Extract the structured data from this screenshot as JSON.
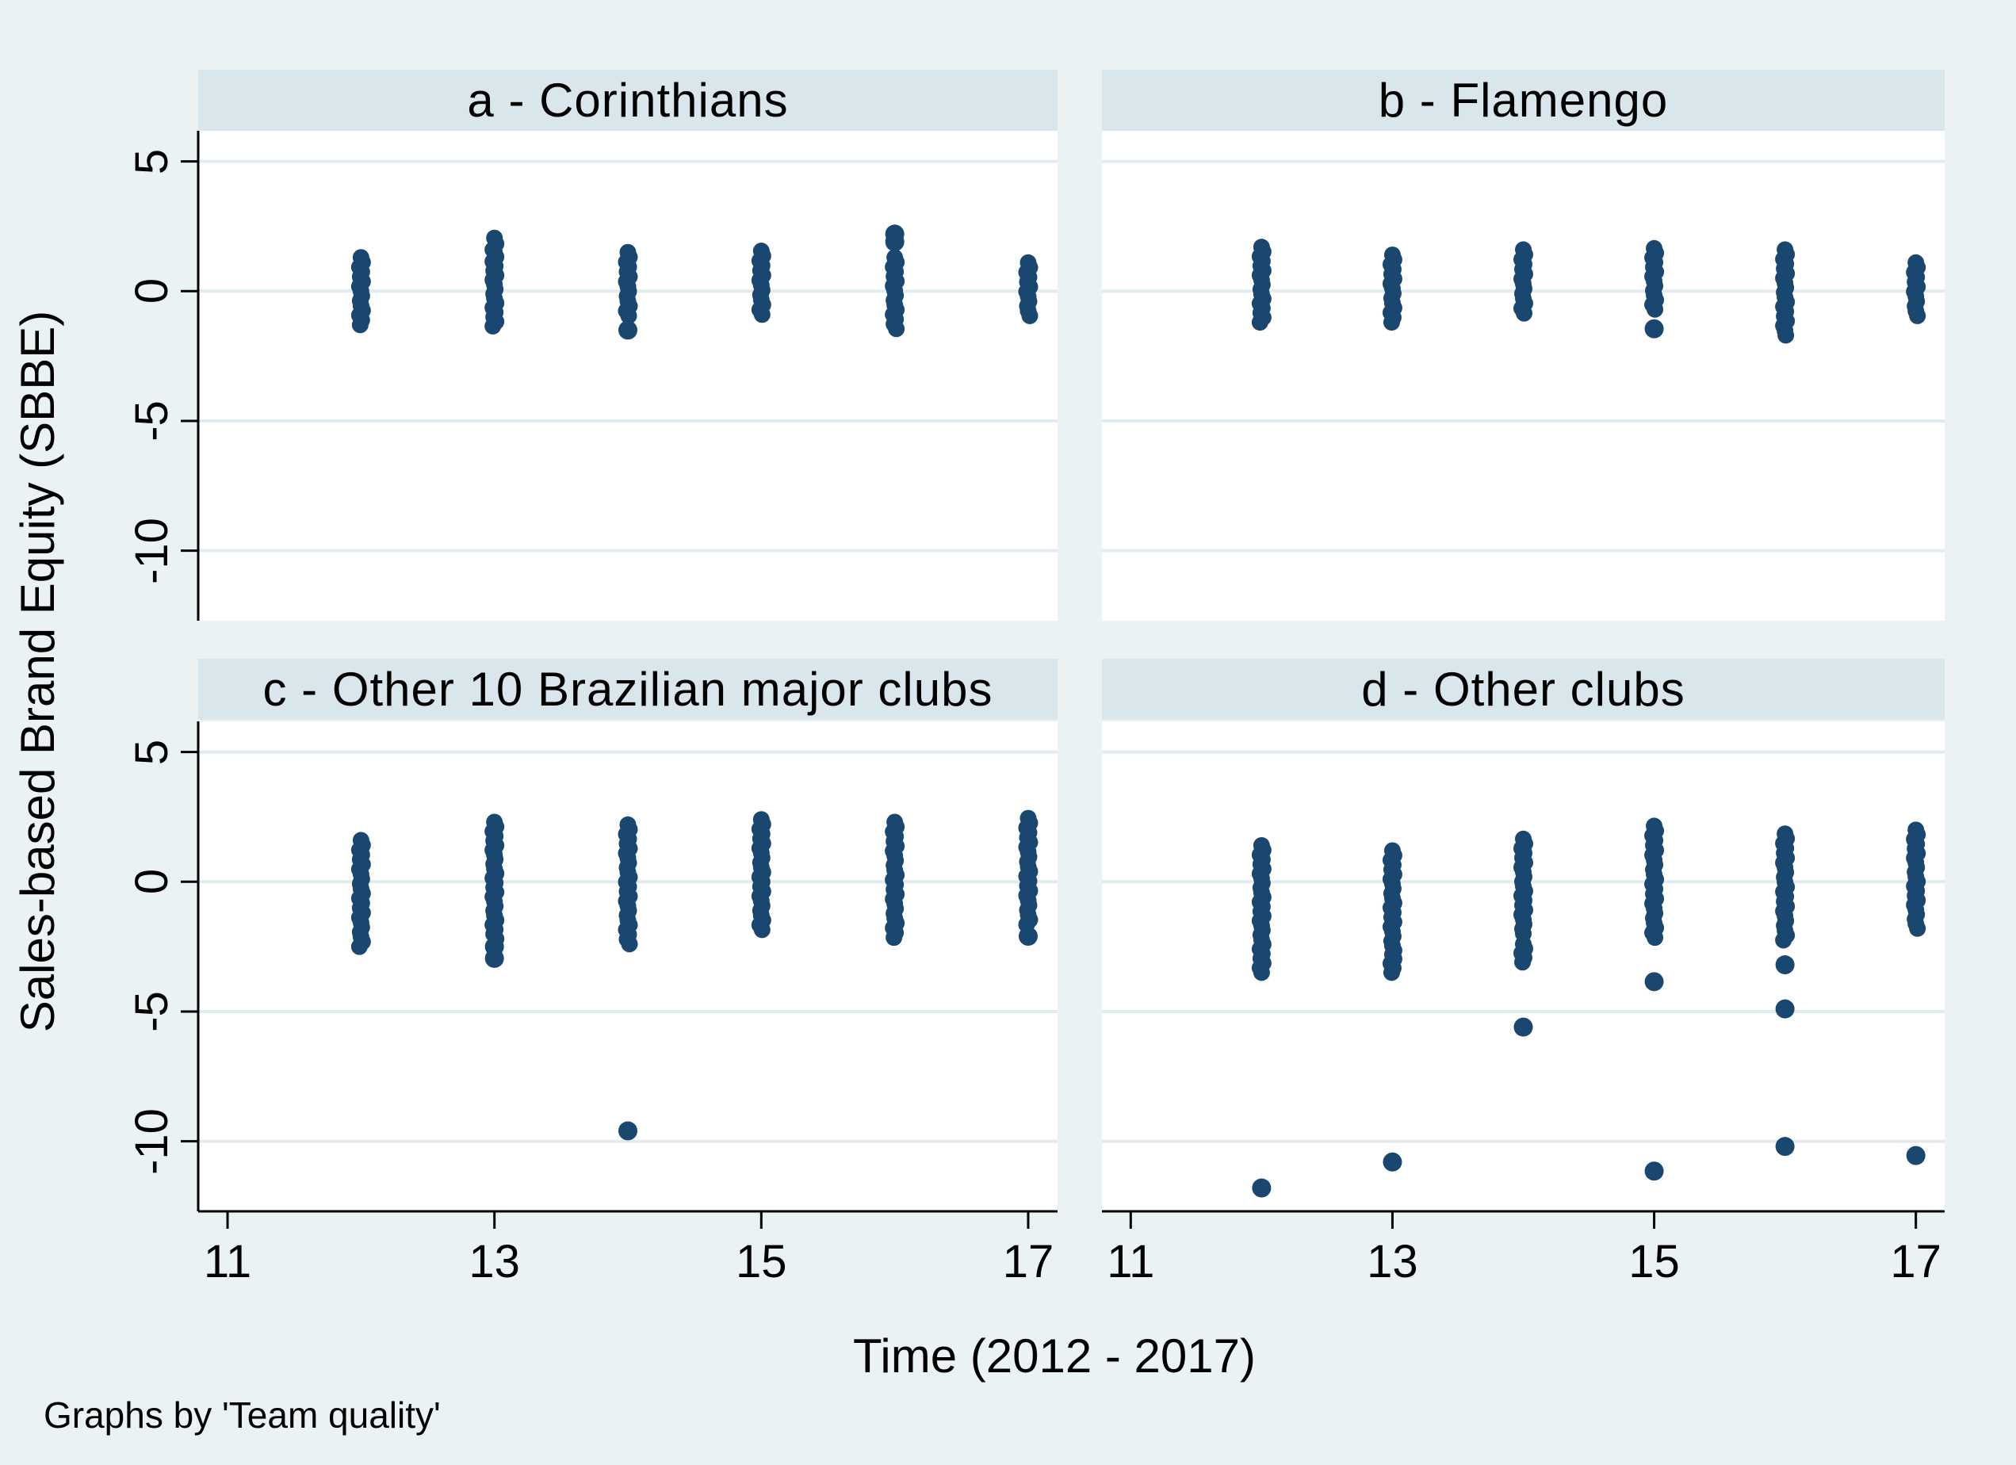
{
  "chart_data": {
    "type": "scatter",
    "description": "Four-panel (small multiples) jittered scatter plot of sales-based brand equity by year, grouped by team quality",
    "ylabel": "Sales-based Brand Equity (SBBE)",
    "xlabel": "Time (2012 - 2017)",
    "note": "Graphs by 'Team quality'",
    "x_ticks": [
      11,
      13,
      15,
      17
    ],
    "y_ticks": [
      5,
      0,
      -5,
      -10
    ],
    "xlim": [
      10.78,
      17.22
    ],
    "ylim": [
      -12.7,
      6.18
    ],
    "grid": "horizontal-only",
    "legend": "none",
    "colors": {
      "background": "#eaf2f3",
      "panel_background": "#ffffff",
      "title_bar": "#d9e6eb",
      "gridline": "#e2ebf0",
      "axis": "#000000",
      "marker": "#1a476f"
    },
    "panels": [
      {
        "id": "a",
        "title": "a - Corinthians",
        "strips": [
          [
            12,
            -1.3,
            1.3
          ],
          [
            13,
            -1.35,
            1.5
          ],
          [
            13,
            1.6,
            2.05
          ],
          [
            14,
            -0.95,
            1.5
          ],
          [
            15,
            -0.9,
            1.55
          ],
          [
            16,
            -1.45,
            1.3
          ],
          [
            17,
            -0.95,
            1.1
          ]
        ],
        "points": [
          [
            14,
            -1.5
          ],
          [
            16,
            1.9
          ],
          [
            16,
            2.2
          ]
        ]
      },
      {
        "id": "b",
        "title": "b - Flamengo",
        "strips": [
          [
            12,
            -1.2,
            1.7
          ],
          [
            13,
            -1.2,
            1.4
          ],
          [
            14,
            -0.85,
            1.6
          ],
          [
            15,
            -0.7,
            1.65
          ],
          [
            16,
            -1.7,
            1.6
          ],
          [
            17,
            -0.95,
            1.1
          ]
        ],
        "points": [
          [
            15,
            -1.45
          ]
        ]
      },
      {
        "id": "c",
        "title": "c - Other 10 Brazilian major clubs",
        "strips": [
          [
            12,
            -2.5,
            1.6
          ],
          [
            13,
            -2.2,
            2.3
          ],
          [
            14,
            -2.4,
            2.2
          ],
          [
            15,
            -1.85,
            2.4
          ],
          [
            16,
            -2.15,
            2.3
          ],
          [
            17,
            -1.65,
            2.45
          ]
        ],
        "points": [
          [
            13,
            -2.5
          ],
          [
            13,
            -2.95
          ],
          [
            14,
            -9.6
          ],
          [
            17,
            -2.1
          ]
        ]
      },
      {
        "id": "d",
        "title": "d - Other clubs",
        "strips": [
          [
            12,
            -3.5,
            1.4
          ],
          [
            13,
            -2.65,
            1.2
          ],
          [
            13,
            -3.5,
            -2.8
          ],
          [
            14,
            -2.0,
            1.65
          ],
          [
            14,
            -3.1,
            -2.4
          ],
          [
            15,
            -2.15,
            2.15
          ],
          [
            16,
            -2.25,
            1.85
          ],
          [
            17,
            -1.8,
            2.0
          ]
        ],
        "points": [
          [
            12,
            -11.8
          ],
          [
            13,
            -10.8
          ],
          [
            14,
            -5.6
          ],
          [
            15,
            -3.85
          ],
          [
            15,
            -11.15
          ],
          [
            16,
            -3.2
          ],
          [
            16,
            -4.9
          ],
          [
            16,
            -10.2
          ],
          [
            17,
            -10.55
          ]
        ]
      }
    ]
  }
}
